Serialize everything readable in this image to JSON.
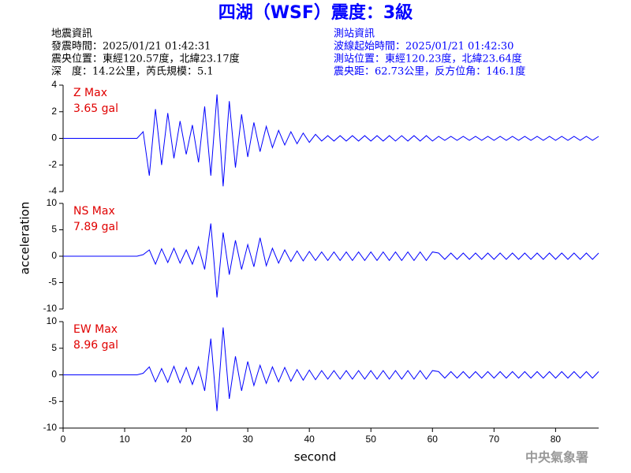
{
  "header": {
    "title": "四湖（WSF）震度：3級",
    "left": [
      "地震資訊",
      "發震時間：2025/01/21 01:42:31",
      "震央位置：東經120.57度，北緯23.17度",
      "深　度：14.2公里，芮氏規模：5.1"
    ],
    "right": [
      "測站資訊",
      "波線起始時間：2025/01/21 01:42:30",
      "測站位置：東經120.23度，北緯23.64度",
      "震央距：62.73公里，反方位角：146.1度"
    ],
    "y_label": "acceleration",
    "watermark": "中央氣象署"
  },
  "chart_data": [
    {
      "type": "line",
      "label": "Z Max",
      "max_label": "3.65 gal",
      "color": "#0000ff",
      "xlim": [
        0,
        87
      ],
      "ylim": [
        -4,
        4
      ],
      "yticks": [
        -4,
        -2,
        0,
        2,
        4
      ],
      "x": [
        0,
        1,
        2,
        3,
        4,
        5,
        6,
        7,
        8,
        9,
        10,
        11,
        12,
        13,
        14,
        15,
        16,
        17,
        18,
        19,
        20,
        21,
        22,
        23,
        24,
        25,
        26,
        27,
        28,
        29,
        30,
        31,
        32,
        33,
        34,
        35,
        36,
        37,
        38,
        39,
        40,
        41,
        42,
        43,
        44,
        45,
        46,
        47,
        48,
        49,
        50,
        51,
        52,
        53,
        54,
        55,
        56,
        57,
        58,
        59,
        60,
        61,
        62,
        63,
        64,
        65,
        66,
        67,
        68,
        69,
        70,
        71,
        72,
        73,
        74,
        75,
        76,
        77,
        78,
        79,
        80,
        81,
        82,
        83,
        84,
        85,
        86,
        87
      ],
      "values": [
        0,
        0,
        0,
        0,
        0,
        0,
        0,
        0,
        0,
        0,
        0,
        0,
        0,
        0.5,
        -2.8,
        2.2,
        -2.0,
        1.9,
        -1.5,
        1.3,
        -1.2,
        1.0,
        -1.8,
        2.4,
        -2.8,
        3.3,
        -3.6,
        2.8,
        -2.2,
        1.8,
        -1.4,
        1.2,
        -1.0,
        0.9,
        -0.7,
        0.6,
        -0.5,
        0.5,
        -0.4,
        0.4,
        -0.3,
        0.3,
        -0.2,
        0.2,
        -0.2,
        0.2,
        -0.2,
        0.2,
        -0.2,
        0.2,
        -0.2,
        0.2,
        -0.2,
        0.2,
        -0.2,
        0.2,
        -0.2,
        0.2,
        -0.2,
        0.2,
        -0.2,
        0.15,
        -0.15,
        0.15,
        -0.15,
        0.15,
        -0.15,
        0.15,
        -0.15,
        0.15,
        -0.15,
        0.15,
        -0.15,
        0.15,
        -0.15,
        0.15,
        -0.15,
        0.15,
        -0.15,
        0.15,
        -0.15,
        0.15,
        -0.15,
        0.15,
        -0.15,
        0.15,
        -0.15,
        0.15
      ]
    },
    {
      "type": "line",
      "label": "NS Max",
      "max_label": "7.89 gal",
      "color": "#0000ff",
      "xlim": [
        0,
        87
      ],
      "ylim": [
        -10,
        10
      ],
      "yticks": [
        -10,
        -5,
        0,
        5,
        10
      ],
      "x": [
        0,
        1,
        2,
        3,
        4,
        5,
        6,
        7,
        8,
        9,
        10,
        11,
        12,
        13,
        14,
        15,
        16,
        17,
        18,
        19,
        20,
        21,
        22,
        23,
        24,
        25,
        26,
        27,
        28,
        29,
        30,
        31,
        32,
        33,
        34,
        35,
        36,
        37,
        38,
        39,
        40,
        41,
        42,
        43,
        44,
        45,
        46,
        47,
        48,
        49,
        50,
        51,
        52,
        53,
        54,
        55,
        56,
        57,
        58,
        59,
        60,
        61,
        62,
        63,
        64,
        65,
        66,
        67,
        68,
        69,
        70,
        71,
        72,
        73,
        74,
        75,
        76,
        77,
        78,
        79,
        80,
        81,
        82,
        83,
        84,
        85,
        86,
        87
      ],
      "values": [
        0,
        0,
        0,
        0,
        0,
        0,
        0,
        0,
        0,
        0,
        0,
        0,
        0,
        0.3,
        1.2,
        -1.5,
        1.4,
        -1.2,
        1.5,
        -1.3,
        1.2,
        -1.5,
        1.8,
        -2.5,
        6.2,
        -7.8,
        4.5,
        -3.5,
        3.0,
        -2.5,
        2.2,
        -2.0,
        3.5,
        -1.8,
        1.5,
        -1.3,
        1.2,
        -1.0,
        1.0,
        -0.9,
        0.9,
        -0.8,
        0.8,
        -0.8,
        0.8,
        -0.8,
        0.8,
        -0.8,
        0.8,
        -0.8,
        0.8,
        -0.8,
        0.8,
        -0.8,
        0.8,
        -0.8,
        0.8,
        -0.8,
        0.8,
        -0.8,
        0.8,
        0.6,
        -0.6,
        0.6,
        -0.6,
        0.6,
        -0.6,
        0.6,
        -0.6,
        0.6,
        -0.6,
        0.6,
        -0.6,
        0.6,
        -0.6,
        0.6,
        -0.6,
        0.6,
        -0.6,
        0.6,
        -0.6,
        0.6,
        -0.6,
        0.6,
        -0.6,
        0.6,
        -0.6,
        0.6
      ]
    },
    {
      "type": "line",
      "label": "EW Max",
      "max_label": "8.96 gal",
      "color": "#0000ff",
      "xlim": [
        0,
        87
      ],
      "ylim": [
        -10,
        10
      ],
      "yticks": [
        -10,
        -5,
        0,
        5,
        10
      ],
      "xticks": [
        0,
        10,
        20,
        30,
        40,
        50,
        60,
        70,
        80
      ],
      "x_label": "second",
      "x": [
        0,
        1,
        2,
        3,
        4,
        5,
        6,
        7,
        8,
        9,
        10,
        11,
        12,
        13,
        14,
        15,
        16,
        17,
        18,
        19,
        20,
        21,
        22,
        23,
        24,
        25,
        26,
        27,
        28,
        29,
        30,
        31,
        32,
        33,
        34,
        35,
        36,
        37,
        38,
        39,
        40,
        41,
        42,
        43,
        44,
        45,
        46,
        47,
        48,
        49,
        50,
        51,
        52,
        53,
        54,
        55,
        56,
        57,
        58,
        59,
        60,
        61,
        62,
        63,
        64,
        65,
        66,
        67,
        68,
        69,
        70,
        71,
        72,
        73,
        74,
        75,
        76,
        77,
        78,
        79,
        80,
        81,
        82,
        83,
        84,
        85,
        86,
        87
      ],
      "values": [
        0,
        0,
        0,
        0,
        0,
        0,
        0,
        0,
        0,
        0,
        0,
        0,
        0,
        0.3,
        1.5,
        -1.3,
        1.2,
        -1.4,
        1.6,
        -1.5,
        1.4,
        -1.8,
        1.5,
        -3.0,
        6.8,
        -6.8,
        8.9,
        -4.5,
        3.5,
        -3.0,
        2.5,
        -2.0,
        1.8,
        -1.6,
        1.5,
        -1.3,
        1.4,
        -1.2,
        1.0,
        -1.0,
        0.9,
        -0.9,
        0.8,
        -0.8,
        0.8,
        -0.8,
        0.8,
        -0.8,
        0.8,
        -0.8,
        0.8,
        -0.8,
        0.8,
        -0.8,
        0.8,
        -0.8,
        0.8,
        -0.8,
        0.8,
        -0.8,
        0.8,
        0.6,
        -0.6,
        0.6,
        -0.6,
        0.6,
        -0.6,
        0.6,
        -0.6,
        0.6,
        -0.6,
        0.6,
        -0.6,
        0.6,
        -0.6,
        0.6,
        -0.6,
        0.6,
        -0.6,
        0.6,
        -0.6,
        0.6,
        -0.6,
        0.6,
        -0.6,
        0.6,
        -0.6,
        0.6
      ]
    }
  ]
}
